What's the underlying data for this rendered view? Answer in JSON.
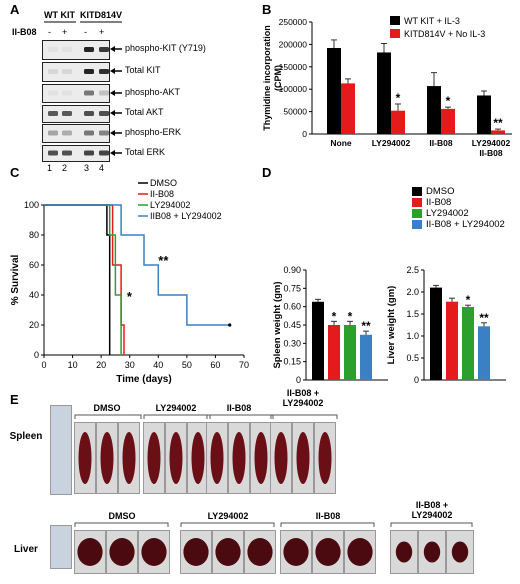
{
  "panel_labels": {
    "a": "A",
    "b": "B",
    "c": "C",
    "d": "D",
    "e": "E"
  },
  "panel_a": {
    "group_labels": [
      "WT KIT",
      "KITD814V"
    ],
    "treatment_label": "II-B08",
    "lane_signs": [
      "-",
      "+",
      "-",
      "+"
    ],
    "lane_numbers": [
      "1",
      "2",
      "3",
      "4"
    ],
    "blot_labels": [
      "phospho-KIT (Y719)",
      "Total KIT",
      "phospho-AKT",
      "Total AKT",
      "phospho-ERK",
      "Total ERK"
    ]
  },
  "panel_d": {
    "legend": [
      "DMSO",
      "II-B08",
      "LY294002",
      "II-B08 + LY294002"
    ]
  },
  "panel_e": {
    "row_labels": [
      "Spleen",
      "Liver"
    ],
    "spleen_groups": [
      "DMSO",
      "LY294002",
      "II-B08",
      "II-B08 +\nLY294002"
    ],
    "liver_groups": [
      "DMSO",
      "LY294002",
      "II-B08",
      "II-B08 +\nLY294002"
    ]
  },
  "chart_data": [
    {
      "panel": "B",
      "type": "bar",
      "categories": [
        "None",
        "LY294002",
        "II-B08",
        "LY294002\nII-B08"
      ],
      "series": [
        {
          "name": "WT KIT + IL-3",
          "color": "#000000",
          "values": [
            192000,
            182000,
            107000,
            86000
          ],
          "errors": [
            18000,
            20000,
            30000,
            10000
          ]
        },
        {
          "name": "KITD814V + No IL-3",
          "color": "#e41a1c",
          "values": [
            113000,
            52000,
            56000,
            8000
          ],
          "errors": [
            10000,
            15000,
            4000,
            3000
          ]
        }
      ],
      "significance": [
        [
          "",
          ""
        ],
        [
          "",
          "*"
        ],
        [
          "",
          "*"
        ],
        [
          "",
          "**"
        ]
      ],
      "ylabel": "Thymidine incorporation\n(CPM)",
      "ylim": [
        0,
        250000
      ],
      "yticks": [
        "0",
        "50000",
        "100000",
        "150000",
        "200000",
        "250000"
      ],
      "legend_position": "top-right"
    },
    {
      "panel": "C",
      "type": "line",
      "xlabel": "Time (days)",
      "ylabel": "% Survival",
      "xlim": [
        0,
        70
      ],
      "ylim": [
        0,
        100
      ],
      "xticks": [
        "0",
        "10",
        "20",
        "30",
        "40",
        "50",
        "60",
        "70"
      ],
      "yticks": [
        "0",
        "20",
        "40",
        "60",
        "80",
        "100"
      ],
      "series": [
        {
          "name": "DMSO",
          "color": "#000000",
          "steps": [
            [
              0,
              100
            ],
            [
              22,
              100
            ],
            [
              22,
              80
            ],
            [
              23,
              80
            ],
            [
              23,
              0
            ]
          ]
        },
        {
          "name": "II-B08",
          "color": "#e41a1c",
          "steps": [
            [
              0,
              100
            ],
            [
              24,
              100
            ],
            [
              24,
              60
            ],
            [
              27,
              60
            ],
            [
              27,
              20
            ],
            [
              28,
              20
            ],
            [
              28,
              0
            ]
          ]
        },
        {
          "name": "LY294002",
          "color": "#2ca02c",
          "steps": [
            [
              0,
              100
            ],
            [
              23,
              100
            ],
            [
              23,
              80
            ],
            [
              25,
              80
            ],
            [
              25,
              40
            ],
            [
              27,
              40
            ],
            [
              27,
              0
            ]
          ]
        },
        {
          "name": "IIB08 + LY294002",
          "color": "#3b7fc4",
          "steps": [
            [
              0,
              100
            ],
            [
              27,
              100
            ],
            [
              27,
              80
            ],
            [
              35,
              80
            ],
            [
              35,
              60
            ],
            [
              40,
              60
            ],
            [
              40,
              40
            ],
            [
              50,
              40
            ],
            [
              50,
              20
            ],
            [
              65,
              20
            ]
          ]
        }
      ],
      "annotations": [
        "*",
        "**"
      ],
      "legend_position": "top-right"
    },
    {
      "panel": "D-spleen",
      "type": "bar",
      "categories": [
        "DMSO",
        "II-B08",
        "LY294002",
        "II-B08 + LY294002"
      ],
      "colors": [
        "#000000",
        "#e41a1c",
        "#2ca02c",
        "#3b7fc4"
      ],
      "values": [
        0.64,
        0.45,
        0.45,
        0.37
      ],
      "errors": [
        0.02,
        0.03,
        0.03,
        0.03
      ],
      "significance": [
        "",
        "*",
        "*",
        "**"
      ],
      "ylabel": "Spleen weight (gm)",
      "ylim": [
        0,
        0.9
      ],
      "yticks": [
        "0",
        "0.15",
        "0.30",
        "0.45",
        "0.60",
        "0.75",
        "0.90"
      ]
    },
    {
      "panel": "D-liver",
      "type": "bar",
      "categories": [
        "DMSO",
        "II-B08",
        "LY294002",
        "II-B08 + LY294002"
      ],
      "colors": [
        "#000000",
        "#e41a1c",
        "#2ca02c",
        "#3b7fc4"
      ],
      "values": [
        2.1,
        1.78,
        1.66,
        1.22
      ],
      "errors": [
        0.05,
        0.08,
        0.04,
        0.08
      ],
      "significance": [
        "",
        "",
        "*",
        "**"
      ],
      "ylabel": "Liver weight (gm)",
      "ylim": [
        0,
        2.5
      ],
      "yticks": [
        "0",
        "0.5",
        "1.0",
        "1.5",
        "2.0",
        "2.5"
      ]
    }
  ]
}
